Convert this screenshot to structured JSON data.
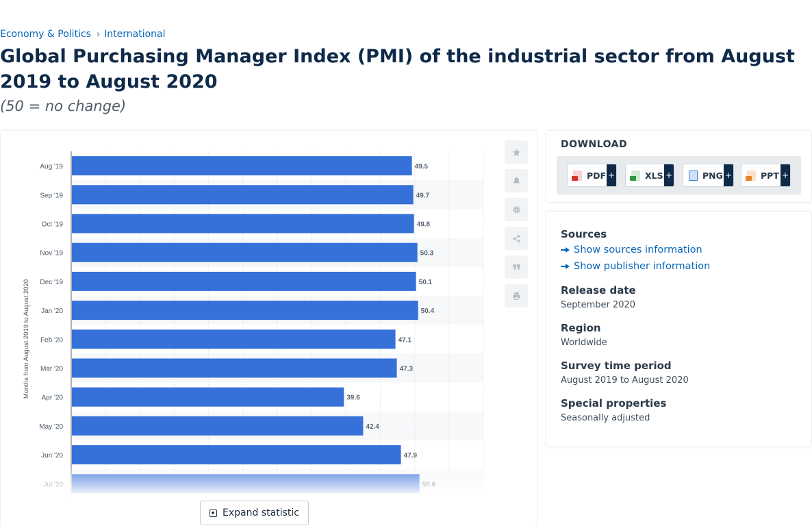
{
  "breadcrumb": {
    "items": [
      "Economy & Politics",
      "International"
    ],
    "separator": "›"
  },
  "page": {
    "title": "Global Purchasing Manager Index (PMI) of the industrial sector from August 2019 to August 2020",
    "subtitle": "(50 = no change)"
  },
  "chart_data": {
    "type": "bar",
    "orientation": "horizontal",
    "ylabel": "Months from August 2019 to August 2020",
    "categories": [
      "Aug '19",
      "Sep '19",
      "Oct '19",
      "Nov '19",
      "Dec '19",
      "Jan '20",
      "Feb '20",
      "Mar '20",
      "Apr '20",
      "May '20",
      "Jun '20",
      "Jul '20"
    ],
    "values": [
      49.5,
      49.7,
      49.8,
      50.3,
      50.1,
      50.4,
      47.1,
      47.3,
      39.6,
      42.4,
      47.9,
      50.6
    ],
    "xlim": [
      0,
      60
    ],
    "bar_color": "#3571d8",
    "grid": true
  },
  "expand": {
    "label": "Expand statistic"
  },
  "tools": [
    {
      "name": "favorite",
      "icon": "star-icon"
    },
    {
      "name": "notify",
      "icon": "bell-icon"
    },
    {
      "name": "settings",
      "icon": "gear-icon"
    },
    {
      "name": "share",
      "icon": "share-icon"
    },
    {
      "name": "cite",
      "icon": "quote-icon"
    },
    {
      "name": "print",
      "icon": "print-icon"
    }
  ],
  "download": {
    "title": "DOWNLOAD",
    "buttons": [
      {
        "label": "PDF",
        "plus": "+",
        "color": "#d9342b"
      },
      {
        "label": "XLS",
        "plus": "+",
        "color": "#2c9a3e"
      },
      {
        "label": "PNG",
        "plus": "+",
        "color": "#3b7bd5"
      },
      {
        "label": "PPT",
        "plus": "+",
        "color": "#e8822a"
      }
    ]
  },
  "info": {
    "sources_heading": "Sources",
    "show_sources": "Show sources information",
    "show_publisher": "Show publisher information",
    "release_heading": "Release date",
    "release_value": "September 2020",
    "region_heading": "Region",
    "region_value": "Worldwide",
    "survey_heading": "Survey time period",
    "survey_value": "August 2019 to August 2020",
    "special_heading": "Special properties",
    "special_value": "Seasonally adjusted"
  }
}
